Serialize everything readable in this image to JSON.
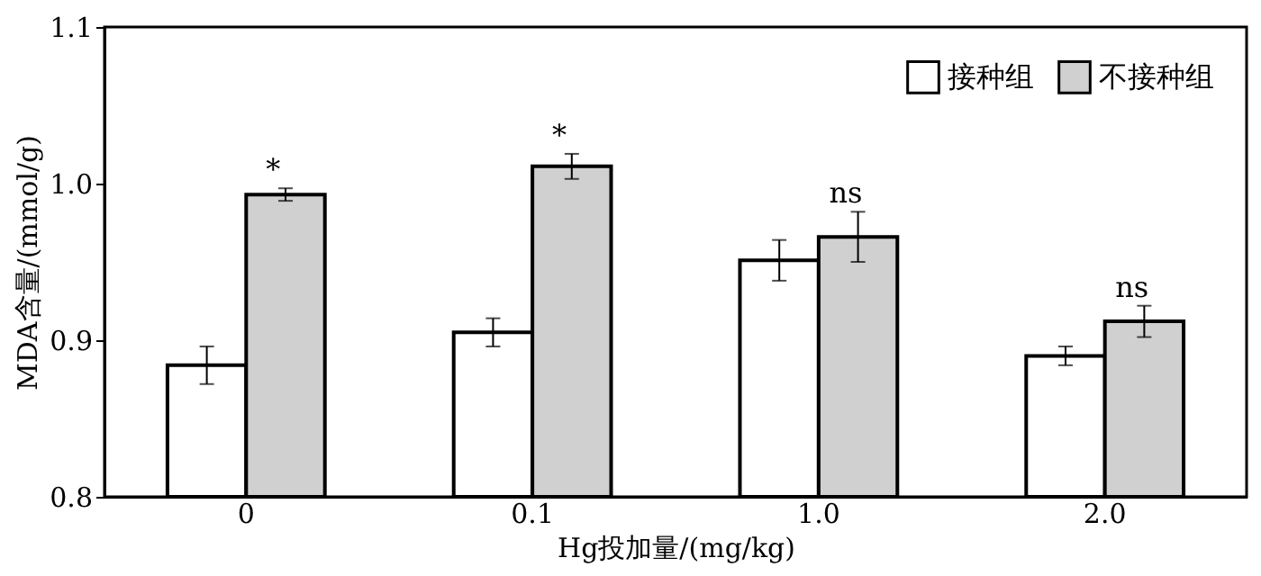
{
  "chart_data": {
    "type": "bar",
    "xlabel": "Hg投加量/(mg/kg)",
    "ylabel": "MDA含量/(mmol/g)",
    "categories": [
      "0",
      "0.1",
      "1.0",
      "2.0"
    ],
    "series": [
      {
        "name": "接种组",
        "color": "#ffffff",
        "values": [
          0.884,
          0.905,
          0.951,
          0.89
        ],
        "errors": [
          0.012,
          0.009,
          0.013,
          0.006
        ]
      },
      {
        "name": "不接种组",
        "color": "#d0d0d0",
        "values": [
          0.993,
          1.011,
          0.966,
          0.912
        ],
        "errors": [
          0.004,
          0.008,
          0.016,
          0.01
        ]
      }
    ],
    "ylim": [
      0.8,
      1.1
    ],
    "yticks": [
      0.8,
      0.9,
      {
        "value": 1.0,
        "label": "1.0"
      },
      1.1
    ],
    "annotations": [
      "*",
      "*",
      "ns",
      "ns"
    ],
    "legend": "top right",
    "grid": false
  }
}
